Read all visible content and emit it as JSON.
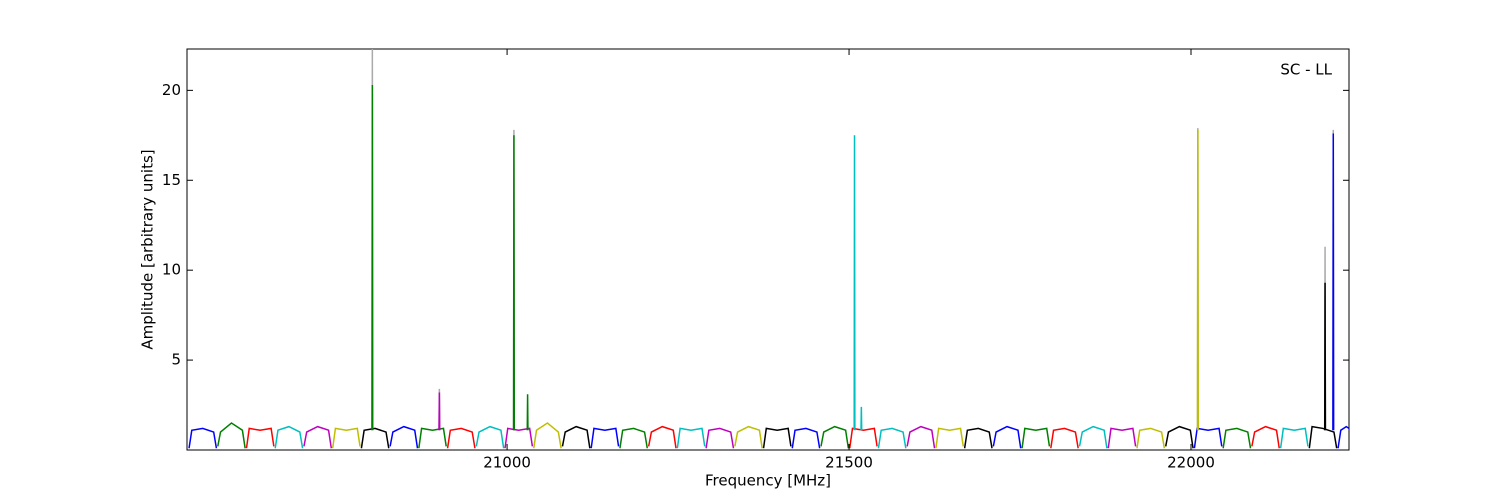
{
  "chart_data": {
    "type": "line",
    "annotation": "SC - LL",
    "x_label": "Frequency [MHz]",
    "y_label": "Amplitude [arbitrary units]",
    "xlim": [
      20532,
      22231
    ],
    "ylim": [
      0,
      22.3
    ],
    "xticks": [
      21000,
      21500,
      22000
    ],
    "yticks": [
      5,
      10,
      15,
      20
    ],
    "series": [
      {
        "color": "#aaaaaa",
        "x": [
          20802.5,
          20803,
          20803.5
        ],
        "values": [
          1.1,
          22.3,
          1.1
        ]
      },
      {
        "color": "#aaaaaa",
        "x": [
          20900.5,
          20901,
          20901.5
        ],
        "values": [
          1.1,
          3.4,
          1.1
        ]
      },
      {
        "color": "#aaaaaa",
        "x": [
          21009.5,
          21010,
          21010.5
        ],
        "values": [
          1.1,
          17.8,
          1.1
        ]
      },
      {
        "color": "#aaaaaa",
        "x": [
          22009.5,
          22010,
          22010.5
        ],
        "values": [
          1.1,
          17.9,
          1.1
        ]
      },
      {
        "color": "#aaaaaa",
        "x": [
          22195.5,
          22196,
          22196.5
        ],
        "values": [
          1.1,
          11.3,
          1.1
        ]
      },
      {
        "color": "#aaaaaa",
        "x": [
          22207.5,
          22208,
          22208.5
        ],
        "values": [
          1.1,
          17.8,
          1.1
        ]
      },
      {
        "color": "#0000ff",
        "x": [
          20535,
          20539,
          20555,
          20571,
          20575
        ],
        "values": [
          0.1,
          1.1,
          1.2,
          1.0,
          0.1
        ]
      },
      {
        "color": "#008000",
        "x": [
          20577,
          20581,
          20597,
          20613,
          20617
        ],
        "values": [
          0.2,
          1.0,
          1.5,
          1.1,
          0.1
        ]
      },
      {
        "color": "#ff0000",
        "x": [
          20619,
          20623,
          20639,
          20655,
          20659
        ],
        "values": [
          0.1,
          1.2,
          1.1,
          1.2,
          0.2
        ]
      },
      {
        "color": "#00bfbf",
        "x": [
          20661,
          20665,
          20681,
          20697,
          20701
        ],
        "values": [
          0.1,
          1.1,
          1.3,
          1.0,
          0.1
        ]
      },
      {
        "color": "#bf00bf",
        "x": [
          20703,
          20707,
          20723,
          20739,
          20743
        ],
        "values": [
          0.2,
          1.0,
          1.3,
          1.1,
          0.1
        ]
      },
      {
        "color": "#bfbf00",
        "x": [
          20745,
          20749,
          20765,
          20781,
          20785
        ],
        "values": [
          0.1,
          1.2,
          1.1,
          1.2,
          0.2
        ]
      },
      {
        "color": "#000000",
        "x": [
          20787,
          20791,
          20807,
          20823,
          20827
        ],
        "values": [
          0.1,
          1.1,
          1.2,
          1.0,
          0.1
        ]
      },
      {
        "color": "#0000ff",
        "x": [
          20829,
          20833,
          20849,
          20865,
          20869
        ],
        "values": [
          0.2,
          1.0,
          1.3,
          1.1,
          0.1
        ]
      },
      {
        "color": "#008000",
        "x": [
          20871,
          20875,
          20891,
          20907,
          20911
        ],
        "values": [
          0.1,
          1.2,
          1.1,
          1.2,
          0.2
        ]
      },
      {
        "color": "#ff0000",
        "x": [
          20913,
          20917,
          20933,
          20949,
          20953
        ],
        "values": [
          0.1,
          1.1,
          1.2,
          1.0,
          0.1
        ]
      },
      {
        "color": "#00bfbf",
        "x": [
          20955,
          20959,
          20975,
          20991,
          20995
        ],
        "values": [
          0.2,
          1.0,
          1.3,
          1.1,
          0.1
        ]
      },
      {
        "color": "#bf00bf",
        "x": [
          20997,
          21001,
          21017,
          21033,
          21037
        ],
        "values": [
          0.1,
          1.2,
          1.1,
          1.2,
          0.2
        ]
      },
      {
        "color": "#bfbf00",
        "x": [
          21039,
          21043,
          21059,
          21075,
          21079
        ],
        "values": [
          0.1,
          1.1,
          1.5,
          1.0,
          0.1
        ]
      },
      {
        "color": "#000000",
        "x": [
          21081,
          21085,
          21101,
          21117,
          21121
        ],
        "values": [
          0.2,
          1.0,
          1.3,
          1.1,
          0.1
        ]
      },
      {
        "color": "#0000ff",
        "x": [
          21123,
          21127,
          21143,
          21159,
          21163
        ],
        "values": [
          0.1,
          1.2,
          1.1,
          1.2,
          0.2
        ]
      },
      {
        "color": "#008000",
        "x": [
          21165,
          21169,
          21185,
          21201,
          21205
        ],
        "values": [
          0.1,
          1.1,
          1.2,
          1.0,
          0.1
        ]
      },
      {
        "color": "#ff0000",
        "x": [
          21207,
          21211,
          21227,
          21243,
          21247
        ],
        "values": [
          0.2,
          1.0,
          1.3,
          1.1,
          0.1
        ]
      },
      {
        "color": "#00bfbf",
        "x": [
          21249,
          21253,
          21269,
          21285,
          21289
        ],
        "values": [
          0.1,
          1.2,
          1.1,
          1.2,
          0.2
        ]
      },
      {
        "color": "#bf00bf",
        "x": [
          21291,
          21295,
          21311,
          21327,
          21331
        ],
        "values": [
          0.1,
          1.1,
          1.2,
          1.0,
          0.1
        ]
      },
      {
        "color": "#bfbf00",
        "x": [
          21333,
          21337,
          21353,
          21369,
          21373
        ],
        "values": [
          0.2,
          1.0,
          1.3,
          1.1,
          0.1
        ]
      },
      {
        "color": "#000000",
        "x": [
          21375,
          21379,
          21395,
          21411,
          21415
        ],
        "values": [
          0.1,
          1.2,
          1.1,
          1.2,
          0.2
        ]
      },
      {
        "color": "#0000ff",
        "x": [
          21417,
          21421,
          21437,
          21453,
          21457
        ],
        "values": [
          0.1,
          1.1,
          1.2,
          1.0,
          0.1
        ]
      },
      {
        "color": "#008000",
        "x": [
          21459,
          21463,
          21479,
          21495,
          21499
        ],
        "values": [
          0.2,
          1.0,
          1.3,
          1.1,
          0.1
        ]
      },
      {
        "color": "#ff0000",
        "x": [
          21501,
          21505,
          21521,
          21537,
          21541
        ],
        "values": [
          0.1,
          1.2,
          1.1,
          1.2,
          0.2
        ]
      },
      {
        "color": "#00bfbf",
        "x": [
          21543,
          21547,
          21563,
          21579,
          21583
        ],
        "values": [
          0.1,
          1.1,
          1.2,
          1.0,
          0.1
        ]
      },
      {
        "color": "#bf00bf",
        "x": [
          21585,
          21589,
          21605,
          21621,
          21625
        ],
        "values": [
          0.2,
          1.0,
          1.3,
          1.1,
          0.1
        ]
      },
      {
        "color": "#bfbf00",
        "x": [
          21627,
          21631,
          21647,
          21663,
          21667
        ],
        "values": [
          0.1,
          1.2,
          1.1,
          1.2,
          0.2
        ]
      },
      {
        "color": "#000000",
        "x": [
          21669,
          21673,
          21689,
          21705,
          21709
        ],
        "values": [
          0.1,
          1.1,
          1.2,
          1.0,
          0.1
        ]
      },
      {
        "color": "#0000ff",
        "x": [
          21711,
          21715,
          21731,
          21747,
          21751
        ],
        "values": [
          0.2,
          1.0,
          1.3,
          1.1,
          0.1
        ]
      },
      {
        "color": "#008000",
        "x": [
          21753,
          21757,
          21773,
          21789,
          21793
        ],
        "values": [
          0.1,
          1.2,
          1.1,
          1.2,
          0.2
        ]
      },
      {
        "color": "#ff0000",
        "x": [
          21795,
          21799,
          21815,
          21831,
          21835
        ],
        "values": [
          0.1,
          1.1,
          1.2,
          1.0,
          0.1
        ]
      },
      {
        "color": "#00bfbf",
        "x": [
          21837,
          21841,
          21857,
          21873,
          21877
        ],
        "values": [
          0.2,
          1.0,
          1.3,
          1.1,
          0.1
        ]
      },
      {
        "color": "#bf00bf",
        "x": [
          21879,
          21883,
          21899,
          21915,
          21919
        ],
        "values": [
          0.1,
          1.2,
          1.1,
          1.2,
          0.2
        ]
      },
      {
        "color": "#bfbf00",
        "x": [
          21921,
          21925,
          21941,
          21957,
          21961
        ],
        "values": [
          0.1,
          1.1,
          1.2,
          1.0,
          0.1
        ]
      },
      {
        "color": "#000000",
        "x": [
          21963,
          21967,
          21983,
          21999,
          22003
        ],
        "values": [
          0.2,
          1.0,
          1.3,
          1.1,
          0.1
        ]
      },
      {
        "color": "#0000ff",
        "x": [
          22005,
          22009,
          22025,
          22041,
          22045
        ],
        "values": [
          0.1,
          1.2,
          1.1,
          1.2,
          0.2
        ]
      },
      {
        "color": "#008000",
        "x": [
          22047,
          22051,
          22067,
          22083,
          22087
        ],
        "values": [
          0.1,
          1.1,
          1.2,
          1.0,
          0.1
        ]
      },
      {
        "color": "#ff0000",
        "x": [
          22089,
          22093,
          22109,
          22125,
          22129
        ],
        "values": [
          0.2,
          1.0,
          1.3,
          1.1,
          0.1
        ]
      },
      {
        "color": "#00bfbf",
        "x": [
          22131,
          22135,
          22151,
          22167,
          22171
        ],
        "values": [
          0.1,
          1.2,
          1.1,
          1.2,
          0.2
        ]
      },
      {
        "color": "#000000",
        "x": [
          22173,
          22177,
          22193,
          22209,
          22213
        ],
        "values": [
          0.1,
          1.3,
          1.2,
          1.0,
          0.1
        ]
      },
      {
        "color": "#0000ff",
        "x": [
          22215,
          22219,
          22227,
          22231
        ],
        "values": [
          0.1,
          1.1,
          1.3,
          1.2
        ]
      },
      {
        "color": "#008000",
        "x": [
          20802.5,
          20803,
          20803.5
        ],
        "values": [
          1.1,
          20.3,
          1.1
        ]
      },
      {
        "color": "#bf00bf",
        "x": [
          20900.5,
          20901,
          20901.5
        ],
        "values": [
          1.1,
          3.2,
          1.1
        ]
      },
      {
        "color": "#008000",
        "x": [
          21009.5,
          21010,
          21010.5
        ],
        "values": [
          1.1,
          17.5,
          1.1
        ]
      },
      {
        "color": "#008000",
        "x": [
          21029.5,
          21030,
          21030.5
        ],
        "values": [
          1.1,
          3.1,
          1.1
        ]
      },
      {
        "color": "#00bfbf",
        "x": [
          21507.5,
          21508,
          21508.5
        ],
        "values": [
          1.1,
          17.5,
          1.1
        ]
      },
      {
        "color": "#00bfbf",
        "x": [
          21517.5,
          21518,
          21518.5
        ],
        "values": [
          1.1,
          2.4,
          1.1
        ]
      },
      {
        "color": "#bfbf00",
        "x": [
          22009.5,
          22010,
          22010.5
        ],
        "values": [
          1.1,
          17.8,
          1.1
        ]
      },
      {
        "color": "#000000",
        "x": [
          22195.5,
          22196,
          22196.5
        ],
        "values": [
          1.1,
          9.3,
          1.1
        ]
      },
      {
        "color": "#0000ff",
        "x": [
          22207.5,
          22208,
          22208.5
        ],
        "values": [
          1.1,
          17.6,
          1.1
        ]
      }
    ]
  }
}
